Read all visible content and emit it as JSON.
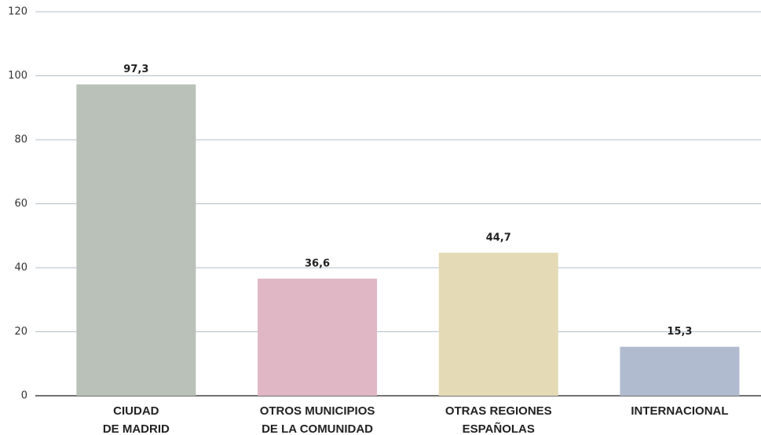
{
  "chart_data": {
    "type": "bar",
    "categories": [
      [
        "CIUDAD",
        "DE MADRID"
      ],
      [
        "OTROS MUNICIPIOS",
        "DE LA COMUNIDAD"
      ],
      [
        "OTRAS REGIONES",
        "ESPAÑOLAS"
      ],
      [
        "INTERNACIONAL"
      ]
    ],
    "values": [
      97.3,
      36.6,
      44.7,
      15.3
    ],
    "value_labels": [
      "97,3",
      "36,6",
      "44,7",
      "15,3"
    ],
    "colors": [
      "#b9c1b8",
      "#e0b7c4",
      "#e4dab6",
      "#b0bbcf"
    ],
    "ylim": [
      0,
      120
    ],
    "yticks": [
      0,
      20,
      40,
      60,
      80,
      100,
      120
    ],
    "grid": true
  }
}
